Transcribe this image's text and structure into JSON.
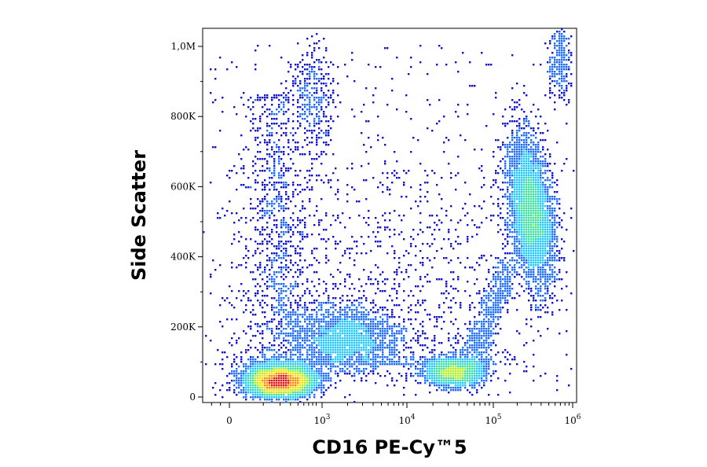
{
  "chart_data": {
    "type": "scatter",
    "title": "",
    "xlabel": "CD16 PE-Cy™5",
    "ylabel": "Side Scatter",
    "x_scale": "biexponential",
    "y_scale": "linear",
    "xlim": [
      -300,
      1000000
    ],
    "ylim": [
      -10000,
      1050000
    ],
    "x_ticks": [
      {
        "value": 0,
        "label": "0"
      },
      {
        "value": 1000,
        "label": "10",
        "exp": "3"
      },
      {
        "value": 10000,
        "label": "10",
        "exp": "4"
      },
      {
        "value": 100000,
        "label": "10",
        "exp": "5"
      },
      {
        "value": 1000000,
        "label": "10",
        "exp": "6"
      }
    ],
    "y_ticks": [
      {
        "value": 0,
        "label": "0"
      },
      {
        "value": 200000,
        "label": "200K"
      },
      {
        "value": 400000,
        "label": "400K"
      },
      {
        "value": 600000,
        "label": "600K"
      },
      {
        "value": 800000,
        "label": "800K"
      },
      {
        "value": 1000000,
        "label": "1,0M"
      }
    ],
    "grid": false,
    "legend": "none",
    "color_scale": [
      "#1010d0",
      "#1e6bff",
      "#22c8ff",
      "#3be3a0",
      "#b0f020",
      "#ffe000",
      "#ff8a00",
      "#e81010"
    ],
    "populations": [
      {
        "x_center": 200,
        "y_center": 45000,
        "events": 4500
      },
      {
        "x_center": 35000,
        "y_center": 70000,
        "events": 1500
      },
      {
        "x_center": 1800,
        "y_center": 165000,
        "events": 1800
      },
      {
        "x_center": 300000,
        "y_center": 530000,
        "events": 3500
      },
      {
        "x_center": 700,
        "y_center": 840000,
        "events": 350
      },
      {
        "x_center": 700000,
        "y_center": 960000,
        "events": 250
      }
    ]
  }
}
